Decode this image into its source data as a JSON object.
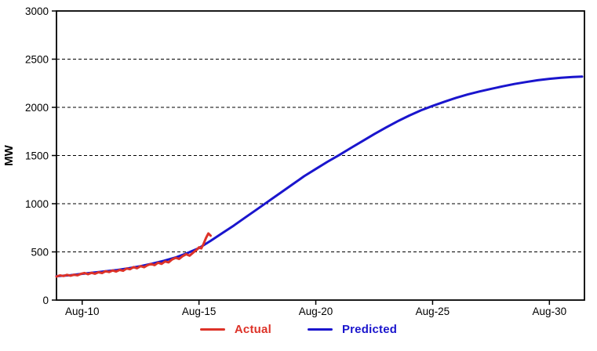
{
  "figure": {
    "background": "#ffffff",
    "frame_color": "#000000",
    "grid_color": "#000000",
    "tick_label_color": "#000000"
  },
  "legend": {
    "items": [
      {
        "name": "actual",
        "label": "Actual",
        "color": "#dd3228"
      },
      {
        "name": "predicted",
        "label": "Predicted",
        "color": "#1a15cd"
      }
    ]
  },
  "chart_data": {
    "type": "line",
    "title": "",
    "xlabel": "",
    "ylabel": "MW",
    "x_unit": "date (August, day of month)",
    "xlim": [
      8.9,
      31.5
    ],
    "ylim": [
      0,
      3000
    ],
    "y_ticks": [
      0,
      500,
      1000,
      1500,
      2000,
      2500,
      3000
    ],
    "gridlines_at": [
      500,
      1000,
      1500,
      2000,
      2500
    ],
    "grid_style": "horizontal dashed black",
    "x_ticks": [
      {
        "value": 10,
        "label": "Aug-10"
      },
      {
        "value": 15,
        "label": "Aug-15"
      },
      {
        "value": 20,
        "label": "Aug-20"
      },
      {
        "value": 25,
        "label": "Aug-25"
      },
      {
        "value": 30,
        "label": "Aug-30"
      }
    ],
    "legend_position": "bottom-center",
    "series": [
      {
        "name": "Predicted",
        "color": "#1a15cd",
        "line_width": 3,
        "points": [
          [
            8.9,
            248
          ],
          [
            9.5,
            258
          ],
          [
            10,
            272
          ],
          [
            10.5,
            285
          ],
          [
            11,
            298
          ],
          [
            11.5,
            312
          ],
          [
            12,
            330
          ],
          [
            12.5,
            352
          ],
          [
            13,
            378
          ],
          [
            13.5,
            408
          ],
          [
            14,
            442
          ],
          [
            14.5,
            488
          ],
          [
            15,
            540
          ],
          [
            15.5,
            615
          ],
          [
            16,
            695
          ],
          [
            16.5,
            775
          ],
          [
            17,
            860
          ],
          [
            17.5,
            945
          ],
          [
            18,
            1030
          ],
          [
            18.5,
            1115
          ],
          [
            19,
            1200
          ],
          [
            19.5,
            1285
          ],
          [
            20,
            1360
          ],
          [
            20.5,
            1435
          ],
          [
            21,
            1505
          ],
          [
            21.5,
            1578
          ],
          [
            22,
            1650
          ],
          [
            22.5,
            1722
          ],
          [
            23,
            1790
          ],
          [
            23.5,
            1855
          ],
          [
            24,
            1915
          ],
          [
            24.5,
            1968
          ],
          [
            25,
            2015
          ],
          [
            25.5,
            2058
          ],
          [
            26,
            2098
          ],
          [
            26.5,
            2133
          ],
          [
            27,
            2164
          ],
          [
            27.5,
            2192
          ],
          [
            28,
            2218
          ],
          [
            28.5,
            2242
          ],
          [
            29,
            2263
          ],
          [
            29.5,
            2281
          ],
          [
            30,
            2296
          ],
          [
            30.5,
            2307
          ],
          [
            31,
            2315
          ],
          [
            31.4,
            2319
          ]
        ]
      },
      {
        "name": "Actual",
        "color": "#dd3228",
        "line_width": 3,
        "points": [
          [
            8.9,
            245
          ],
          [
            9.05,
            256
          ],
          [
            9.2,
            250
          ],
          [
            9.35,
            262
          ],
          [
            9.5,
            253
          ],
          [
            9.65,
            263
          ],
          [
            9.8,
            257
          ],
          [
            9.95,
            272
          ],
          [
            10.1,
            281
          ],
          [
            10.25,
            268
          ],
          [
            10.4,
            283
          ],
          [
            10.55,
            273
          ],
          [
            10.7,
            289
          ],
          [
            10.85,
            280
          ],
          [
            11.0,
            299
          ],
          [
            11.15,
            291
          ],
          [
            11.3,
            307
          ],
          [
            11.45,
            296
          ],
          [
            11.6,
            313
          ],
          [
            11.75,
            304
          ],
          [
            11.9,
            328
          ],
          [
            12.05,
            320
          ],
          [
            12.2,
            342
          ],
          [
            12.35,
            330
          ],
          [
            12.5,
            352
          ],
          [
            12.65,
            341
          ],
          [
            12.8,
            362
          ],
          [
            12.95,
            374
          ],
          [
            13.1,
            363
          ],
          [
            13.25,
            388
          ],
          [
            13.4,
            376
          ],
          [
            13.55,
            401
          ],
          [
            13.7,
            391
          ],
          [
            13.85,
            422
          ],
          [
            14.0,
            438
          ],
          [
            14.15,
            427
          ],
          [
            14.3,
            456
          ],
          [
            14.45,
            476
          ],
          [
            14.6,
            461
          ],
          [
            14.75,
            492
          ],
          [
            14.9,
            522
          ],
          [
            15.0,
            548
          ],
          [
            15.1,
            536
          ],
          [
            15.2,
            585
          ],
          [
            15.3,
            645
          ],
          [
            15.4,
            692
          ],
          [
            15.5,
            668
          ]
        ]
      }
    ]
  }
}
